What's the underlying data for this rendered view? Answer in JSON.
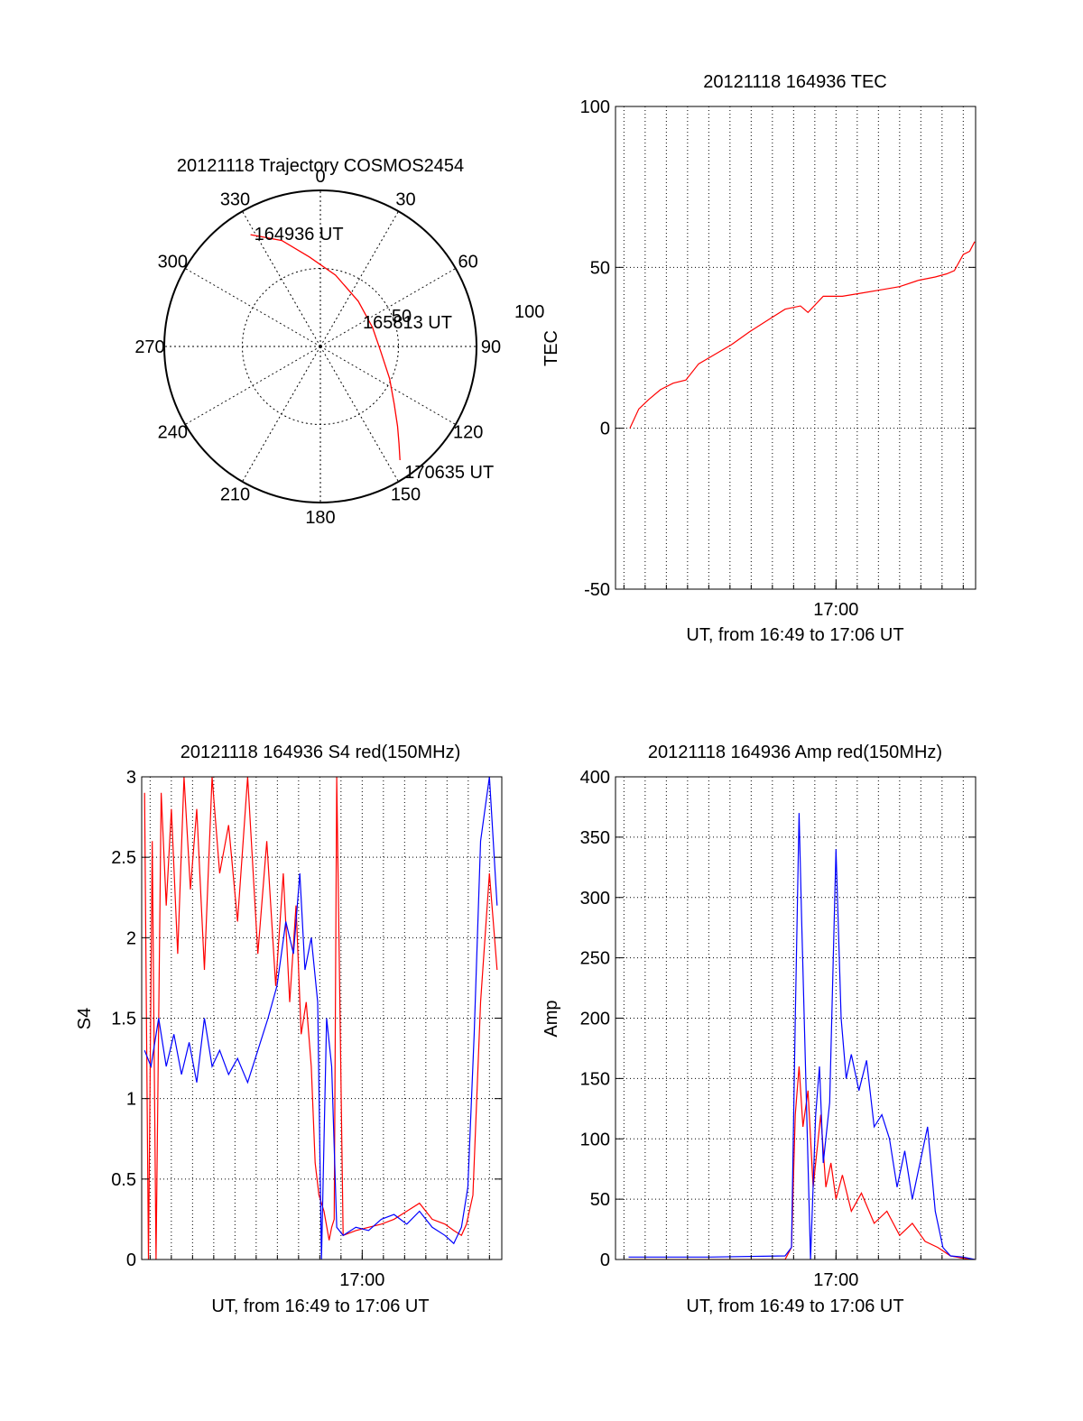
{
  "colors": {
    "red": "#ff0000",
    "blue": "#0000ff",
    "axis": "#000000"
  },
  "chart_data": [
    {
      "id": "polar",
      "type": "polar-trajectory",
      "title": "20121118 Trajectory COSMOS2454",
      "azimuth_labels": [
        "0",
        "30",
        "60",
        "90",
        "120",
        "150",
        "180",
        "210",
        "240",
        "270",
        "300",
        "330"
      ],
      "elevation_labels": [
        {
          "label": "50",
          "elevation": 50
        },
        {
          "label": "100",
          "elevation": 0
        }
      ],
      "trajectory": [
        {
          "az": 328,
          "el": 14
        },
        {
          "az": 340,
          "el": 25
        },
        {
          "az": 353,
          "el": 38
        },
        {
          "az": 12,
          "el": 48
        },
        {
          "az": 40,
          "el": 56
        },
        {
          "az": 70,
          "el": 58
        },
        {
          "az": 95,
          "el": 55
        },
        {
          "az": 115,
          "el": 46
        },
        {
          "az": 128,
          "el": 36
        },
        {
          "az": 136,
          "el": 26
        },
        {
          "az": 141,
          "el": 18
        },
        {
          "az": 145,
          "el": 10
        }
      ],
      "annotations": [
        {
          "text": "164936 UT",
          "at": "start"
        },
        {
          "text": "165813 UT",
          "at": "middle"
        },
        {
          "text": "170635 UT",
          "at": "end"
        }
      ]
    },
    {
      "id": "tec",
      "type": "line",
      "title": "20121118 164936 TEC",
      "ylabel": "TEC",
      "xlabel": "UT, from 16:49 to 17:06 UT",
      "xlim": [
        16.8267,
        17.1097
      ],
      "ylim": [
        -50,
        100
      ],
      "yticks": [
        -50,
        0,
        50,
        100
      ],
      "xticks": [
        {
          "label": "17:00",
          "value": 17.0
        }
      ],
      "grid": true,
      "series": [
        {
          "color": "#ff0000",
          "x": [
            16.838,
            16.845,
            16.853,
            16.862,
            16.872,
            16.882,
            16.892,
            16.905,
            16.918,
            16.932,
            16.948,
            16.96,
            16.972,
            16.975,
            16.978,
            16.99,
            17.005,
            17.02,
            17.035,
            17.05,
            17.065,
            17.078,
            17.087,
            17.093,
            17.1,
            17.105,
            17.109
          ],
          "y": [
            0,
            6,
            9,
            12,
            14,
            15,
            20,
            23,
            26,
            30,
            34,
            37,
            38,
            37,
            36,
            41,
            41,
            42,
            43,
            44,
            46,
            47,
            48,
            49,
            54,
            55,
            58
          ]
        }
      ]
    },
    {
      "id": "s4",
      "type": "line",
      "title": "20121118 164936 S4 red(150MHz)",
      "ylabel": "S4",
      "xlabel": "UT, from 16:49 to 17:06 UT",
      "xlim": [
        16.8267,
        17.1097
      ],
      "ylim": [
        0,
        3
      ],
      "yticks": [
        0,
        0.5,
        1,
        1.5,
        2,
        2.5,
        3
      ],
      "xticks": [
        {
          "label": "17:00",
          "value": 17.0
        }
      ],
      "grid": true,
      "series": [
        {
          "color": "#ff0000",
          "x": [
            16.829,
            16.832,
            16.835,
            16.838,
            16.842,
            16.846,
            16.85,
            16.855,
            16.86,
            16.865,
            16.87,
            16.876,
            16.882,
            16.888,
            16.895,
            16.902,
            16.91,
            16.918,
            16.925,
            16.932,
            16.938,
            16.943,
            16.948,
            16.952,
            16.956,
            16.96,
            16.963,
            16.966,
            16.97,
            16.974,
            16.976,
            16.978,
            16.98,
            16.985,
            16.995,
            17.005,
            17.015,
            17.025,
            17.035,
            17.045,
            17.055,
            17.065,
            17.072,
            17.078,
            17.082,
            17.087,
            17.093,
            17.1,
            17.106
          ],
          "y": [
            2.9,
            0.0,
            2.6,
            0.0,
            2.9,
            2.2,
            2.8,
            1.9,
            3.0,
            2.3,
            2.8,
            1.8,
            3.0,
            2.4,
            2.7,
            2.1,
            3.0,
            1.9,
            2.6,
            1.7,
            2.4,
            1.6,
            2.2,
            1.4,
            1.6,
            1.2,
            0.6,
            0.4,
            0.3,
            0.12,
            0.2,
            0.25,
            3.0,
            0.15,
            0.18,
            0.2,
            0.22,
            0.25,
            0.3,
            0.35,
            0.25,
            0.22,
            0.18,
            0.15,
            0.22,
            0.4,
            1.6,
            2.4,
            1.8
          ]
        },
        {
          "color": "#0000ff",
          "x": [
            16.829,
            16.834,
            16.84,
            16.846,
            16.852,
            16.858,
            16.864,
            16.87,
            16.876,
            16.882,
            16.888,
            16.895,
            16.902,
            16.91,
            16.918,
            16.926,
            16.933,
            16.94,
            16.946,
            16.951,
            16.955,
            16.96,
            16.965,
            16.968,
            16.972,
            16.976,
            16.98,
            16.985,
            16.995,
            17.005,
            17.015,
            17.025,
            17.035,
            17.045,
            17.055,
            17.065,
            17.072,
            17.078,
            17.083,
            17.088,
            17.093,
            17.1,
            17.106
          ],
          "y": [
            1.3,
            1.2,
            1.5,
            1.2,
            1.4,
            1.15,
            1.35,
            1.1,
            1.5,
            1.2,
            1.3,
            1.15,
            1.25,
            1.1,
            1.3,
            1.5,
            1.7,
            2.1,
            1.9,
            2.4,
            1.8,
            2.0,
            1.6,
            0.0,
            1.5,
            1.2,
            0.2,
            0.15,
            0.2,
            0.18,
            0.25,
            0.28,
            0.22,
            0.3,
            0.2,
            0.15,
            0.1,
            0.2,
            0.45,
            1.4,
            2.6,
            3.0,
            2.2
          ]
        }
      ]
    },
    {
      "id": "amp",
      "type": "line",
      "title": "20121118 164936 Amp red(150MHz)",
      "ylabel": "Amp",
      "xlabel": "UT, from 16:49 to 17:06 UT",
      "xlim": [
        16.8267,
        17.1097
      ],
      "ylim": [
        0,
        400
      ],
      "yticks": [
        0,
        50,
        100,
        150,
        200,
        250,
        300,
        350,
        400
      ],
      "xticks": [
        {
          "label": "17:00",
          "value": 17.0
        }
      ],
      "grid": true,
      "series": [
        {
          "color": "#ff0000",
          "x": [
            16.837,
            16.9,
            16.96,
            16.965,
            16.968,
            16.971,
            16.974,
            16.978,
            16.982,
            16.985,
            16.988,
            16.992,
            16.996,
            17.0,
            17.005,
            17.012,
            17.02,
            17.03,
            17.04,
            17.05,
            17.06,
            17.07,
            17.08,
            17.09,
            17.1,
            17.109
          ],
          "y": [
            0,
            0,
            0,
            10,
            120,
            160,
            110,
            140,
            60,
            90,
            120,
            60,
            80,
            50,
            70,
            40,
            55,
            30,
            40,
            20,
            30,
            15,
            10,
            3,
            1,
            0
          ]
        },
        {
          "color": "#0000ff",
          "x": [
            16.837,
            16.9,
            16.96,
            16.965,
            16.968,
            16.971,
            16.973,
            16.976,
            16.98,
            16.984,
            16.987,
            16.99,
            16.995,
            17.0,
            17.004,
            17.008,
            17.012,
            17.018,
            17.024,
            17.03,
            17.036,
            17.042,
            17.048,
            17.054,
            17.06,
            17.066,
            17.072,
            17.078,
            17.084,
            17.09,
            17.1,
            17.109
          ],
          "y": [
            2,
            2,
            3,
            10,
            200,
            370,
            280,
            160,
            0,
            120,
            160,
            80,
            130,
            340,
            200,
            150,
            170,
            140,
            165,
            110,
            120,
            100,
            60,
            90,
            50,
            80,
            110,
            40,
            10,
            3,
            2,
            0
          ]
        }
      ]
    }
  ]
}
